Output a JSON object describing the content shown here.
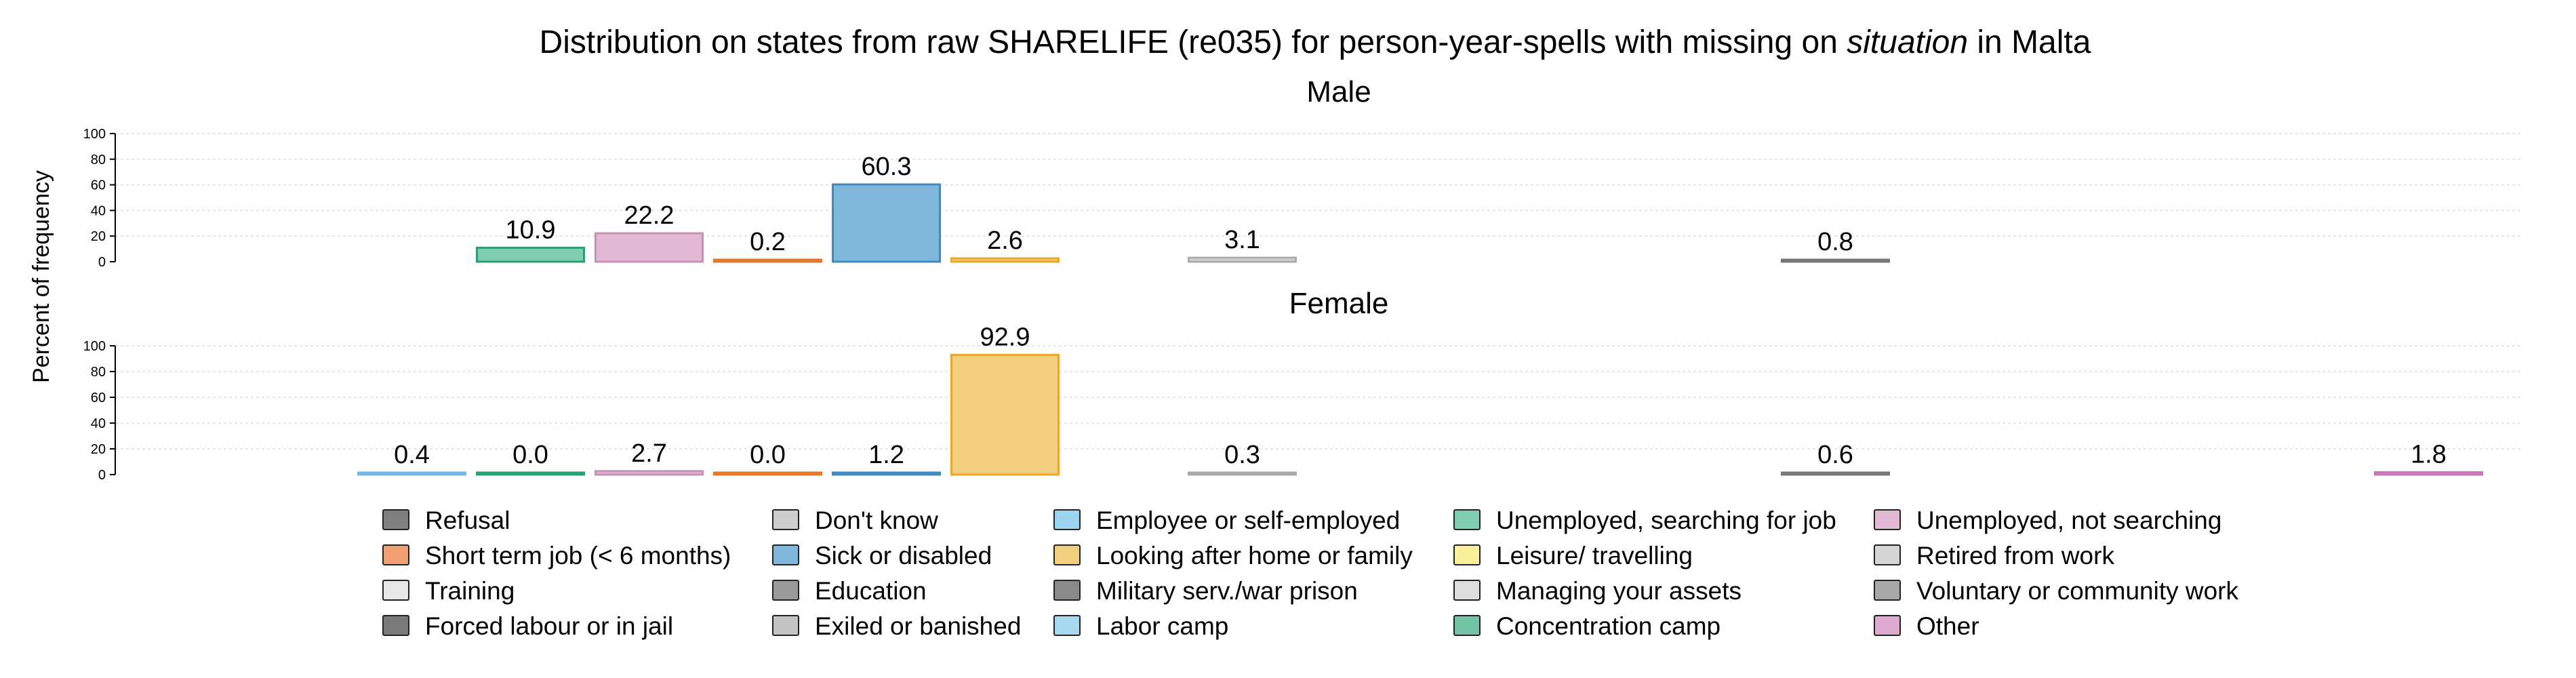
{
  "chart_data": {
    "type": "bar",
    "title": {
      "prefix": "Distribution on states from raw SHARELIFE (re035) for person-year-spells with missing on ",
      "italic": "situation",
      "suffix": " in Malta"
    },
    "ylabel": "Percent of frequency",
    "ylim": [
      0,
      100
    ],
    "yticks": [
      0,
      20,
      40,
      60,
      80,
      100
    ],
    "grid": true,
    "categories": [
      "Refusal",
      "Don't know",
      "Employee or self-employed",
      "Unemployed, searching for job",
      "Unemployed, not searching",
      "Short term job (< 6 months)",
      "Sick or disabled",
      "Looking after home or family",
      "Leisure/ travelling",
      "Retired from work",
      "Training",
      "Education",
      "Military serv./war prison",
      "Managing your assets",
      "Voluntary or community work",
      "Forced labour or in jail",
      "Exiled or banished",
      "Labor camp",
      "Concentration camp",
      "Other"
    ],
    "colors": {
      "Refusal": "#808080",
      "Don't know": "#cccccc",
      "Employee or self-employed": "#9dd4f0",
      "Unemployed, searching for job": "#7fcfae",
      "Unemployed, not searching": "#e3b8d4",
      "Short term job (< 6 months)": "#f0a070",
      "Sick or disabled": "#7fb8dc",
      "Looking after home or family": "#f2cf7c",
      "Leisure/ travelling": "#f7ef9a",
      "Retired from work": "#d4d4d4",
      "Training": "#e8e8e8",
      "Education": "#9a9a9a",
      "Military serv./war prison": "#8a8a8a",
      "Managing your assets": "#dedede",
      "Voluntary or community work": "#a8a8a8",
      "Forced labour or in jail": "#7a7a7a",
      "Exiled or banished": "#c4c4c4",
      "Labor camp": "#a8d8f0",
      "Concentration camp": "#72c4a4",
      "Other": "#dcaad0"
    },
    "edge_colors": {
      "Refusal": "#444444",
      "Don't know": "#999999",
      "Employee or self-employed": "#74b9e0",
      "Unemployed, searching for job": "#2e9e70",
      "Unemployed, not searching": "#c890b8",
      "Short term job (< 6 months)": "#e07a30",
      "Sick or disabled": "#3e8cbf",
      "Looking after home or family": "#e8a830",
      "Leisure/ travelling": "#e0d060",
      "Retired from work": "#aaaaaa",
      "Training": "#c0c0c0",
      "Education": "#666666",
      "Military serv./war prison": "#555555",
      "Managing your assets": "#bbbbbb",
      "Voluntary or community work": "#777777",
      "Forced labour or in jail": "#444444",
      "Exiled or banished": "#999999",
      "Labor camp": "#74b9e0",
      "Concentration camp": "#2e9e70",
      "Other": "#c870b8"
    },
    "slots": [
      "Refusal",
      "Don't know",
      "Employee or self-employed",
      "Unemployed, searching for job",
      "Unemployed, not searching",
      "Short term job (< 6 months)",
      "Sick or disabled",
      "Looking after home or family",
      "Leisure/ travelling",
      "Retired from work",
      "Training",
      "Education",
      "Military serv./war prison",
      "Managing your assets",
      "Voluntary or community work",
      "Forced labour or in jail",
      "Exiled or banished",
      "Labor camp",
      "Concentration camp",
      "Other"
    ],
    "panels": [
      {
        "name": "Male",
        "bars": [
          {
            "category": "Unemployed, searching for job",
            "value": 10.9,
            "label": "10.9"
          },
          {
            "category": "Unemployed, not searching",
            "value": 22.2,
            "label": "22.2"
          },
          {
            "category": "Short term job (< 6 months)",
            "value": 0.2,
            "label": "0.2"
          },
          {
            "category": "Sick or disabled",
            "value": 60.3,
            "label": "60.3"
          },
          {
            "category": "Looking after home or family",
            "value": 2.6,
            "label": "2.6"
          },
          {
            "category": "Retired from work",
            "value": 3.1,
            "label": "3.1"
          },
          {
            "category": "Voluntary or community work",
            "value": 0.8,
            "label": "0.8"
          }
        ]
      },
      {
        "name": "Female",
        "bars": [
          {
            "category": "Employee or self-employed",
            "value": 0.4,
            "label": "0.4"
          },
          {
            "category": "Unemployed, searching for job",
            "value": 0.0,
            "label": "0.0"
          },
          {
            "category": "Unemployed, not searching",
            "value": 2.7,
            "label": "2.7"
          },
          {
            "category": "Short term job (< 6 months)",
            "value": 0.0,
            "label": "0.0"
          },
          {
            "category": "Sick or disabled",
            "value": 1.2,
            "label": "1.2"
          },
          {
            "category": "Looking after home or family",
            "value": 92.9,
            "label": "92.9"
          },
          {
            "category": "Retired from work",
            "value": 0.3,
            "label": "0.3"
          },
          {
            "category": "Voluntary or community work",
            "value": 0.6,
            "label": "0.6"
          },
          {
            "category": "Other",
            "value": 1.8,
            "label": "1.8"
          }
        ]
      }
    ],
    "legend": {
      "placement": "bottom",
      "columns": [
        [
          "Refusal",
          "Short term job (< 6 months)",
          "Training",
          "Forced labour or in jail"
        ],
        [
          "Don't know",
          "Sick or disabled",
          "Education",
          "Exiled or banished"
        ],
        [
          "Employee or self-employed",
          "Looking after home or family",
          "Military serv./war prison",
          "Labor camp"
        ],
        [
          "Unemployed, searching for job",
          "Leisure/ travelling",
          "Managing your assets",
          "Concentration camp"
        ],
        [
          "Unemployed, not searching",
          "Retired from work",
          "Voluntary or community work",
          "Other"
        ]
      ]
    }
  }
}
